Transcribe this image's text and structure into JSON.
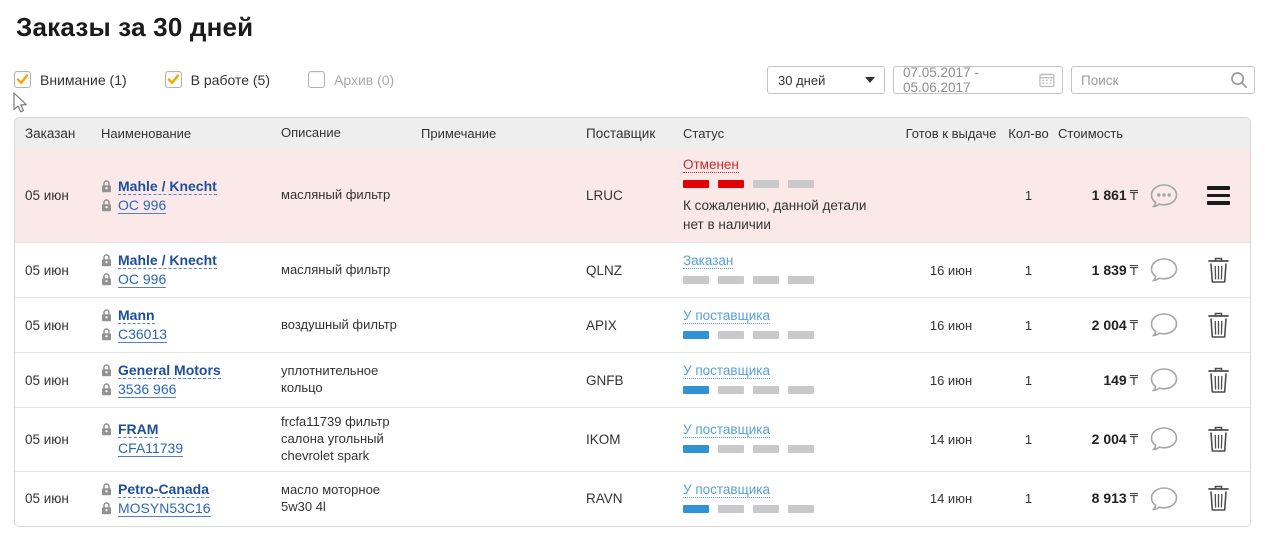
{
  "page": {
    "title": "Заказы за 30 дней"
  },
  "filters": {
    "tabs": [
      {
        "label": "Внимание (1)",
        "checked": true
      },
      {
        "label": "В работе (5)",
        "checked": true
      },
      {
        "label": "Архив (0)",
        "checked": false
      }
    ],
    "period_select": "30 дней",
    "date_range": "07.05.2017 - 05.06.2017",
    "search_placeholder": "Поиск"
  },
  "table": {
    "headers": [
      "Заказан",
      "Наименование",
      "Описание",
      "Примечание",
      "Поставщик",
      "Статус",
      "Готов к выдаче",
      "Кол-во",
      "Стоимость"
    ],
    "rows": [
      {
        "ordered": "05 июн",
        "brand": "Mahle / Knecht",
        "part_number": "OC 996",
        "brand_lock": true,
        "part_lock": true,
        "description": "масляный фильтр",
        "note": "",
        "supplier": "LRUC",
        "status": {
          "label": "Отменен",
          "type": "cancelled",
          "progress": [
            "red",
            "red",
            "grey",
            "grey"
          ],
          "message": "К сожалению, данной детали нет в наличии"
        },
        "ready_date": "",
        "qty": "1",
        "price": "1 861",
        "currency": "₸",
        "has_messages": true,
        "action": "menu",
        "highlighted": true
      },
      {
        "ordered": "05 июн",
        "brand": "Mahle / Knecht",
        "part_number": "OC 996",
        "brand_lock": true,
        "part_lock": true,
        "description": "масляный фильтр",
        "note": "",
        "supplier": "QLNZ",
        "status": {
          "label": "Заказан",
          "type": "ordered",
          "progress": [
            "grey",
            "grey",
            "grey",
            "grey"
          ],
          "message": ""
        },
        "ready_date": "16 июн",
        "qty": "1",
        "price": "1 839",
        "currency": "₸",
        "has_messages": false,
        "action": "delete",
        "highlighted": false
      },
      {
        "ordered": "05 июн",
        "brand": "Mann",
        "part_number": "C36013",
        "brand_lock": true,
        "part_lock": true,
        "description": "воздушный фильтр",
        "note": "",
        "supplier": "APIX",
        "status": {
          "label": "У поставщика",
          "type": "supplier",
          "progress": [
            "blue",
            "grey",
            "grey",
            "grey"
          ],
          "message": ""
        },
        "ready_date": "16 июн",
        "qty": "1",
        "price": "2 004",
        "currency": "₸",
        "has_messages": false,
        "action": "delete",
        "highlighted": false
      },
      {
        "ordered": "05 июн",
        "brand": "General Motors",
        "part_number": "3536 966",
        "brand_lock": true,
        "part_lock": true,
        "description": "уплотнительное кольцо",
        "note": "",
        "supplier": "GNFB",
        "status": {
          "label": "У поставщика",
          "type": "supplier",
          "progress": [
            "blue",
            "grey",
            "grey",
            "grey"
          ],
          "message": ""
        },
        "ready_date": "16 июн",
        "qty": "1",
        "price": "149",
        "currency": "₸",
        "has_messages": false,
        "action": "delete",
        "highlighted": false
      },
      {
        "ordered": "05 июн",
        "brand": "FRAM",
        "part_number": "CFA11739",
        "brand_lock": true,
        "part_lock": false,
        "description": "frcfa11739 фильтр салона угольный chevrolet spark",
        "note": "",
        "supplier": "IKOM",
        "status": {
          "label": "У поставщика",
          "type": "supplier",
          "progress": [
            "blue",
            "grey",
            "grey",
            "grey"
          ],
          "message": ""
        },
        "ready_date": "14 июн",
        "qty": "1",
        "price": "2 004",
        "currency": "₸",
        "has_messages": false,
        "action": "delete",
        "highlighted": false
      },
      {
        "ordered": "05 июн",
        "brand": "Petro-Canada",
        "part_number": "MOSYN53C16",
        "brand_lock": true,
        "part_lock": true,
        "description": "масло моторное 5w30 4l",
        "note": "",
        "supplier": "RAVN",
        "status": {
          "label": "У поставщика",
          "type": "supplier",
          "progress": [
            "blue",
            "grey",
            "grey",
            "grey"
          ],
          "message": ""
        },
        "ready_date": "14 июн",
        "qty": "1",
        "price": "8 913",
        "currency": "₸",
        "has_messages": false,
        "action": "delete",
        "highlighted": false
      }
    ]
  },
  "icons": {
    "checkbox_tick": "orange-checkmark",
    "select_caret": "caret-down",
    "date": "calendar",
    "search": "magnifier",
    "part_secured": "padlock",
    "comments": "speech-bubble",
    "row_menu": "hamburger",
    "row_delete": "trash-can",
    "pointer": "mouse-cursor"
  },
  "colors": {
    "checkbox_tick": "#f7a600",
    "bar_red": "#e20000",
    "bar_blue": "#3093d5",
    "bar_grey": "#c9c9c9",
    "row_alert_bg": "#fbe9e9",
    "brand_link": "#1d4e9e",
    "part_link": "#2b66b8",
    "status_blue": "#58a1d8",
    "status_red": "#cf2a2a",
    "header_bg": "#efeeee"
  }
}
